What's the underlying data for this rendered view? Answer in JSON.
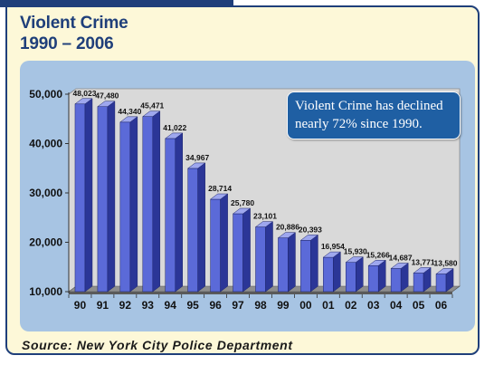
{
  "header": {
    "title": "Violent Crime",
    "subtitle": "1990 – 2006"
  },
  "callout": {
    "text": "Violent Crime has declined nearly 72% since 1990."
  },
  "footer": {
    "source": "Source: New York City Police Department"
  },
  "colors": {
    "frame_border": "#1f3f7a",
    "frame_fill": "#fdf8d8",
    "panel_fill": "#a7c4e3",
    "bar_front": "#5b6ad8",
    "bar_side": "#2b3697",
    "bar_top": "#9ea7ee",
    "callout_fill": "#1f5fa3"
  },
  "chart_data": {
    "type": "bar",
    "title": "Violent Crime",
    "subtitle": "1990 – 2006",
    "categories": [
      "90",
      "91",
      "92",
      "93",
      "94",
      "95",
      "96",
      "97",
      "98",
      "99",
      "00",
      "01",
      "02",
      "03",
      "04",
      "05",
      "06"
    ],
    "values": [
      48023,
      47480,
      44340,
      45471,
      41022,
      34967,
      28714,
      25780,
      23101,
      20886,
      20393,
      16954,
      15930,
      15266,
      14687,
      13771,
      13580
    ],
    "value_labels": [
      "48,023",
      "47,480",
      "44,340",
      "45,471",
      "41,022",
      "34,967",
      "28,714",
      "25,780",
      "23,101",
      "20,886",
      "20,393",
      "16,954",
      "15,930",
      "15,266",
      "14,687",
      "13,771",
      "13,580"
    ],
    "ylim": [
      10000,
      50000
    ],
    "yticks": [
      10000,
      20000,
      30000,
      40000,
      50000
    ],
    "ytick_labels": [
      "10,000",
      "20,000",
      "30,000",
      "40,000",
      "50,000"
    ],
    "xlabel": "",
    "ylabel": "",
    "grid": false,
    "style": "3d-bar"
  }
}
